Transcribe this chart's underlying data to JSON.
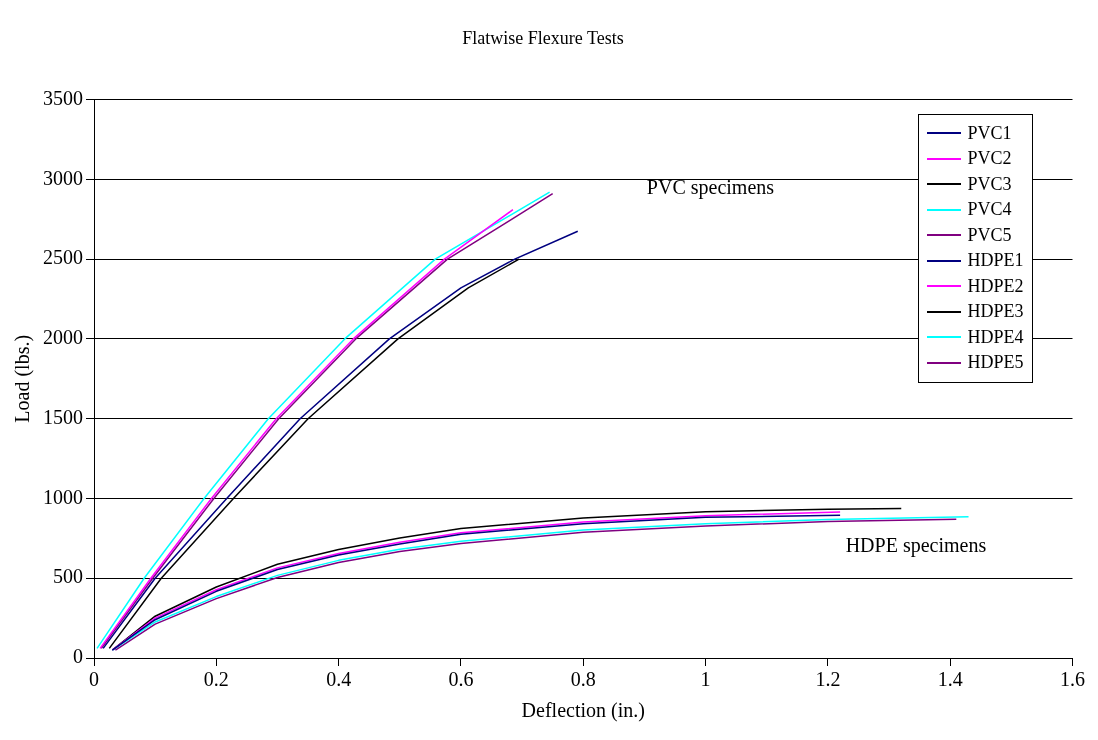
{
  "chart_data": {
    "type": "line",
    "title": "Flatwise Flexure Tests",
    "xlabel": "Deflection (in.)",
    "ylabel": "Load (lbs.)",
    "xlim": [
      0,
      1.6
    ],
    "xticks": [
      0,
      0.2,
      0.4,
      0.6,
      0.8,
      1,
      1.2,
      1.4,
      1.6
    ],
    "ylim": [
      0,
      3500
    ],
    "yticks": [
      0,
      500,
      1000,
      1500,
      2000,
      2500,
      3000,
      3500
    ],
    "grid": "y",
    "legend": "top right",
    "marker": "none",
    "line_style": "solid",
    "annotations": [
      "PVC specimens",
      "HDPE specimens"
    ],
    "series": [
      {
        "name": "PVC1",
        "color": "#000080",
        "x": [
          0.015,
          0.1,
          0.217,
          0.337,
          0.483,
          0.6,
          0.688,
          0.791
        ],
        "values": [
          60,
          500,
          1000,
          1500,
          2000,
          2320,
          2500,
          2675
        ]
      },
      {
        "name": "PVC2",
        "color": "#ff00ff",
        "x": [
          0.01,
          0.093,
          0.192,
          0.298,
          0.424,
          0.573,
          0.685
        ],
        "values": [
          60,
          500,
          1000,
          1500,
          2000,
          2500,
          2810
        ]
      },
      {
        "name": "PVC3",
        "color": "#000000",
        "x": [
          0.025,
          0.11,
          0.228,
          0.35,
          0.497,
          0.612,
          0.695
        ],
        "values": [
          60,
          500,
          1000,
          1500,
          2000,
          2320,
          2500
        ]
      },
      {
        "name": "PVC4",
        "color": "#00ffff",
        "x": [
          0.005,
          0.082,
          0.18,
          0.285,
          0.41,
          0.558,
          0.745
        ],
        "values": [
          60,
          500,
          1000,
          1500,
          2000,
          2500,
          2920
        ]
      },
      {
        "name": "PVC5",
        "color": "#800080",
        "x": [
          0.012,
          0.096,
          0.196,
          0.302,
          0.428,
          0.578,
          0.75
        ],
        "values": [
          60,
          500,
          1000,
          1500,
          2000,
          2500,
          2910
        ]
      },
      {
        "name": "HDPE1",
        "color": "#000080",
        "x": [
          0.03,
          0.1,
          0.2,
          0.3,
          0.4,
          0.5,
          0.6,
          0.8,
          1.0,
          1.22
        ],
        "values": [
          50,
          240,
          418,
          555,
          645,
          715,
          775,
          842,
          882,
          895
        ]
      },
      {
        "name": "HDPE2",
        "color": "#ff00ff",
        "x": [
          0.03,
          0.1,
          0.2,
          0.3,
          0.4,
          0.5,
          0.6,
          0.8,
          1.0,
          1.22
        ],
        "values": [
          50,
          250,
          428,
          565,
          655,
          725,
          785,
          852,
          892,
          915
        ]
      },
      {
        "name": "HDPE3",
        "color": "#000000",
        "x": [
          0.03,
          0.1,
          0.2,
          0.3,
          0.4,
          0.5,
          0.6,
          0.8,
          1.0,
          1.2,
          1.32
        ],
        "values": [
          50,
          262,
          445,
          588,
          680,
          752,
          812,
          878,
          917,
          933,
          937
        ]
      },
      {
        "name": "HDPE4",
        "color": "#00ffff",
        "x": [
          0.03,
          0.1,
          0.2,
          0.3,
          0.4,
          0.5,
          0.6,
          0.8,
          1.0,
          1.2,
          1.43
        ],
        "values": [
          50,
          226,
          385,
          518,
          612,
          682,
          732,
          802,
          842,
          868,
          885
        ]
      },
      {
        "name": "HDPE5",
        "color": "#800080",
        "x": [
          0.035,
          0.1,
          0.2,
          0.3,
          0.4,
          0.5,
          0.6,
          0.8,
          1.0,
          1.2,
          1.41
        ],
        "values": [
          50,
          212,
          372,
          505,
          598,
          668,
          718,
          788,
          828,
          855,
          870
        ]
      }
    ]
  }
}
